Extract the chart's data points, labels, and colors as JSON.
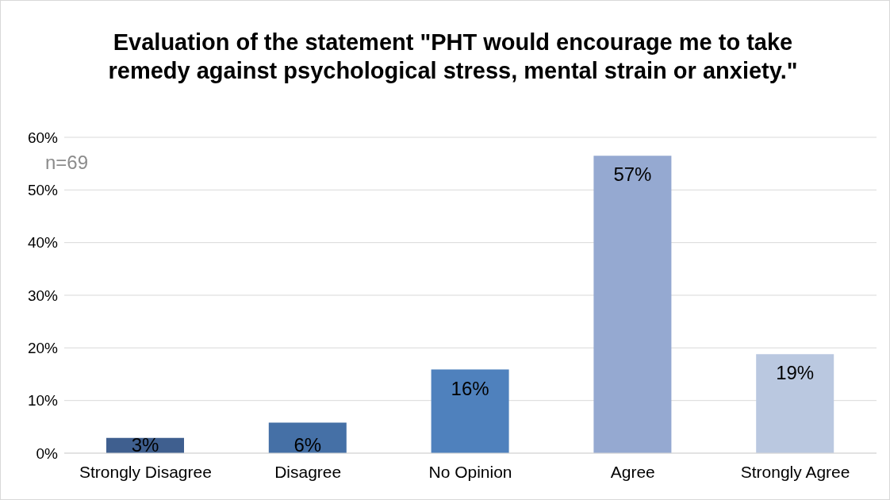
{
  "chart_data": {
    "type": "bar",
    "title": "Evaluation of the statement \"PHT would encourage me to take remedy against psychological stress, mental strain or anxiety.\"",
    "categories": [
      "Strongly Disagree",
      "Disagree",
      "No Opinion",
      "Agree",
      "Strongly Agree"
    ],
    "values": [
      2.9,
      5.8,
      15.9,
      56.5,
      18.8
    ],
    "value_labels": [
      "3%",
      "6%",
      "16%",
      "57%",
      "19%"
    ],
    "colors": [
      "#3f5f8f",
      "#4570a6",
      "#4f81bd",
      "#95a9d1",
      "#bac8e0"
    ],
    "ylim": [
      0,
      60
    ],
    "yticks": [
      {
        "value": 0,
        "label": "0%"
      },
      {
        "value": 10,
        "label": "10%"
      },
      {
        "value": 20,
        "label": "20%"
      },
      {
        "value": 30,
        "label": "30%"
      },
      {
        "value": 40,
        "label": "40%"
      },
      {
        "value": 50,
        "label": "50%"
      },
      {
        "value": 60,
        "label": "60%"
      }
    ],
    "grid": "y",
    "legend": false,
    "annotations": [
      "n=69"
    ]
  }
}
